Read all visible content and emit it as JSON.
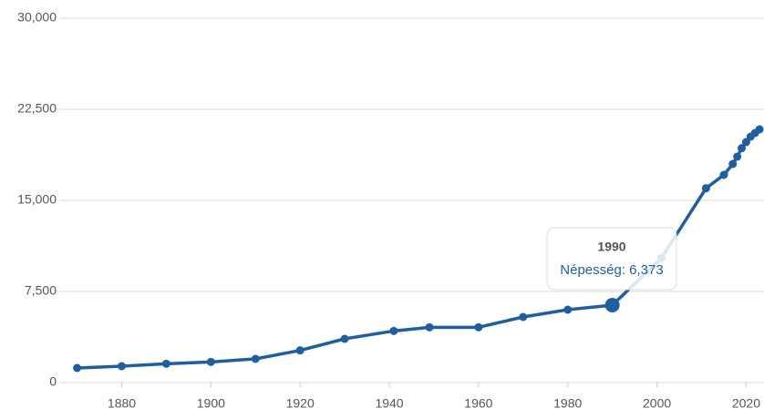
{
  "chart_data": {
    "type": "line",
    "x": [
      1870,
      1880,
      1890,
      1900,
      1910,
      1920,
      1930,
      1941,
      1949,
      1960,
      1970,
      1980,
      1990,
      2001,
      2011,
      2015,
      2017,
      2018,
      2019,
      2020,
      2021,
      2022,
      2023
    ],
    "series": [
      {
        "name": "Népesség",
        "color": "#1f5fa0",
        "values": [
          1200,
          1350,
          1550,
          1700,
          1950,
          2650,
          3600,
          4250,
          4550,
          4550,
          5400,
          6000,
          6373,
          10250,
          16000,
          17100,
          18000,
          18600,
          19300,
          19800,
          20250,
          20550,
          20850
        ]
      }
    ],
    "xlim": [
      1866,
      2024
    ],
    "xticks": [
      1880,
      1900,
      1920,
      1940,
      1960,
      1980,
      2000,
      2020
    ],
    "ylim": [
      0,
      30000
    ],
    "yticks": [
      0,
      {
        "value": 7500,
        "label": "7,500"
      },
      {
        "value": 15000,
        "label": "15,000"
      },
      {
        "value": 22500,
        "label": "22,500"
      },
      {
        "value": 30000,
        "label": "30,000"
      }
    ],
    "grid": true,
    "tooltip": {
      "title": "1990",
      "text": "Népesség: 6,373"
    }
  }
}
